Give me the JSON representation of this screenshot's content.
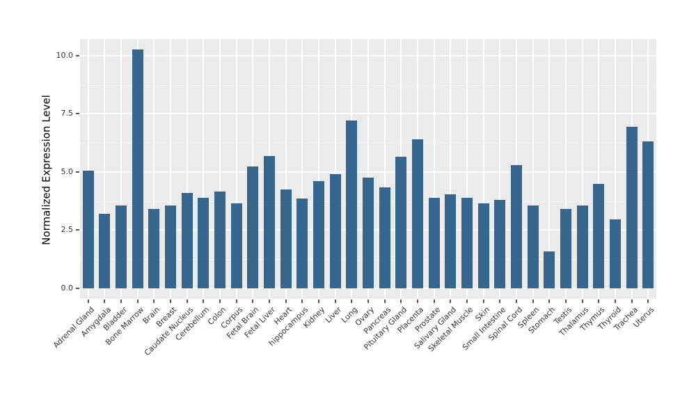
{
  "chart_data": {
    "type": "bar",
    "title": "",
    "xlabel": "",
    "ylabel": "Normalized Expression Level",
    "categories": [
      "Adrenal Gland",
      "Amygdala",
      "Bladder",
      "Bone Marrow",
      "Brain",
      "Breast",
      "Caudate Nucleus",
      "Cerebellum",
      "Colon",
      "Corpus",
      "Fetal Brain",
      "Fetal Liver",
      "Heart",
      "hippocampus",
      "Kidney",
      "Liver",
      "Lung",
      "Ovary",
      "Pancreas",
      "Pituitary Gland",
      "Placenta",
      "Prostate",
      "Salivary Gland",
      "Skeletal Muscle",
      "Skin",
      "Small Intestine",
      "Spinal Cord",
      "Spleen",
      "Stomach",
      "Testis",
      "Thalamus",
      "Thymus",
      "Thyroid",
      "Trachea",
      "Uterus"
    ],
    "values": [
      5.05,
      3.2,
      3.55,
      10.25,
      3.4,
      3.55,
      4.1,
      3.9,
      4.15,
      3.65,
      5.25,
      5.7,
      4.25,
      3.85,
      4.6,
      4.9,
      7.2,
      4.75,
      4.35,
      5.65,
      6.4,
      3.9,
      4.05,
      3.9,
      3.65,
      3.8,
      5.3,
      3.55,
      1.6,
      3.4,
      3.55,
      4.5,
      2.95,
      6.95,
      6.3
    ],
    "ylim": [
      0,
      10.25
    ],
    "yticks": [
      0,
      2.5,
      5,
      7.5,
      10
    ],
    "ytick_labels": [
      "0.0",
      "2.5",
      "5.0",
      "7.5",
      "10.0"
    ],
    "minor_yticks": [
      1.25,
      3.75,
      6.25,
      8.75
    ],
    "grid": true,
    "legend": false,
    "colors": {
      "bar": "#36658D",
      "panel_bg": "#EBEBEB",
      "grid_major": "#FFFFFF",
      "grid_minor": "#F5F5F5",
      "tick_text": "#333333",
      "tick_mark": "#555555",
      "axis_title": "#000000",
      "figure_bg": "#FFFFFF"
    }
  }
}
